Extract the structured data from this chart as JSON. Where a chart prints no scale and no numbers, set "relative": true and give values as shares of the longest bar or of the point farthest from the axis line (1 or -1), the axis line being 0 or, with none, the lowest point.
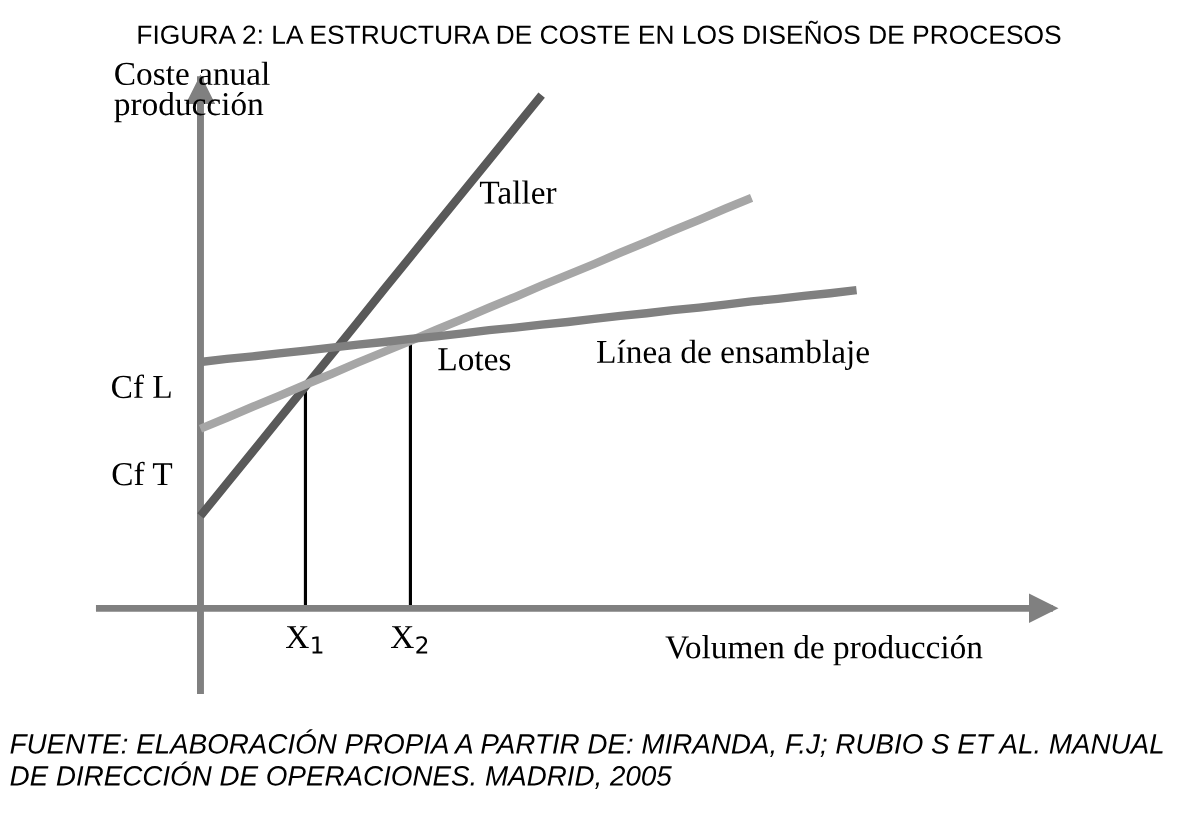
{
  "chart_data": {
    "type": "line",
    "relative": true,
    "title": "FIGURA 2: LA ESTRUCTURA DE COSTE EN LOS DISEÑOS DE PROCESOS",
    "xlabel": "Volumen de producción",
    "ylabel": "Coste anual\nproducción",
    "categories": [
      null,
      null,
      null,
      null,
      "X$_{1}$",
      null,
      null,
      null,
      "X$_{2}$",
      null,
      null,
      null,
      null,
      null,
      null,
      null,
      null,
      null,
      null,
      null,
      null,
      null,
      null,
      null,
      null,
      null,
      null,
      null,
      null,
      null,
      null,
      null,
      null
    ],
    "series": [
      {
        "name": "Taller",
        "color": "#595959",
        "values": [
          0.18,
          0.243,
          0.306,
          0.369,
          0.432,
          0.495,
          0.558,
          0.622,
          0.685,
          0.748,
          0.811,
          0.874,
          0.937,
          1.0,
          null,
          null,
          null,
          null,
          null,
          null,
          null,
          null,
          null,
          null,
          null,
          null,
          null,
          null,
          null,
          null,
          null,
          null,
          null
        ]
      },
      {
        "name": "Lotes",
        "color": "#a6a6a6",
        "values": [
          0.35,
          0.371,
          0.393,
          0.414,
          0.436,
          0.457,
          0.479,
          0.5,
          0.521,
          0.543,
          0.564,
          0.586,
          0.607,
          0.629,
          0.65,
          0.671,
          0.693,
          0.714,
          0.736,
          0.757,
          0.779,
          0.8,
          null,
          null,
          null,
          null,
          null,
          null,
          null,
          null,
          null,
          null,
          null
        ]
      },
      {
        "name": "Línea de ensamblaje",
        "color": "#808080",
        "values": [
          0.48,
          0.486,
          0.491,
          0.497,
          0.502,
          0.508,
          0.514,
          0.519,
          0.525,
          0.53,
          0.536,
          0.542,
          0.547,
          0.553,
          0.558,
          0.564,
          0.57,
          0.575,
          0.581,
          0.586,
          0.592,
          0.598,
          0.603,
          0.609,
          0.614,
          0.62,
          null,
          null,
          null,
          null,
          null,
          null,
          null
        ]
      },
      {
        "type": "bar",
        "color": "#000000",
        "values": [
          null,
          null,
          null,
          null,
          0.425,
          null,
          null,
          null,
          0.515,
          null,
          null,
          null,
          null,
          null,
          null,
          null,
          null,
          null,
          null,
          null,
          null,
          null,
          null,
          null,
          null,
          null,
          null,
          null,
          null,
          null,
          null,
          null,
          null
        ]
      }
    ],
    "annotations": [
      "Cf L",
      "Cf T",
      "FUENTE: ELABORACIÓN PROPIA A PARTIR DE: MIRANDA, F.J; RUBIO S ET AL. MANUAL DE DIRECCIÓN DE OPERACIONES. MADRID, 2005"
    ]
  }
}
